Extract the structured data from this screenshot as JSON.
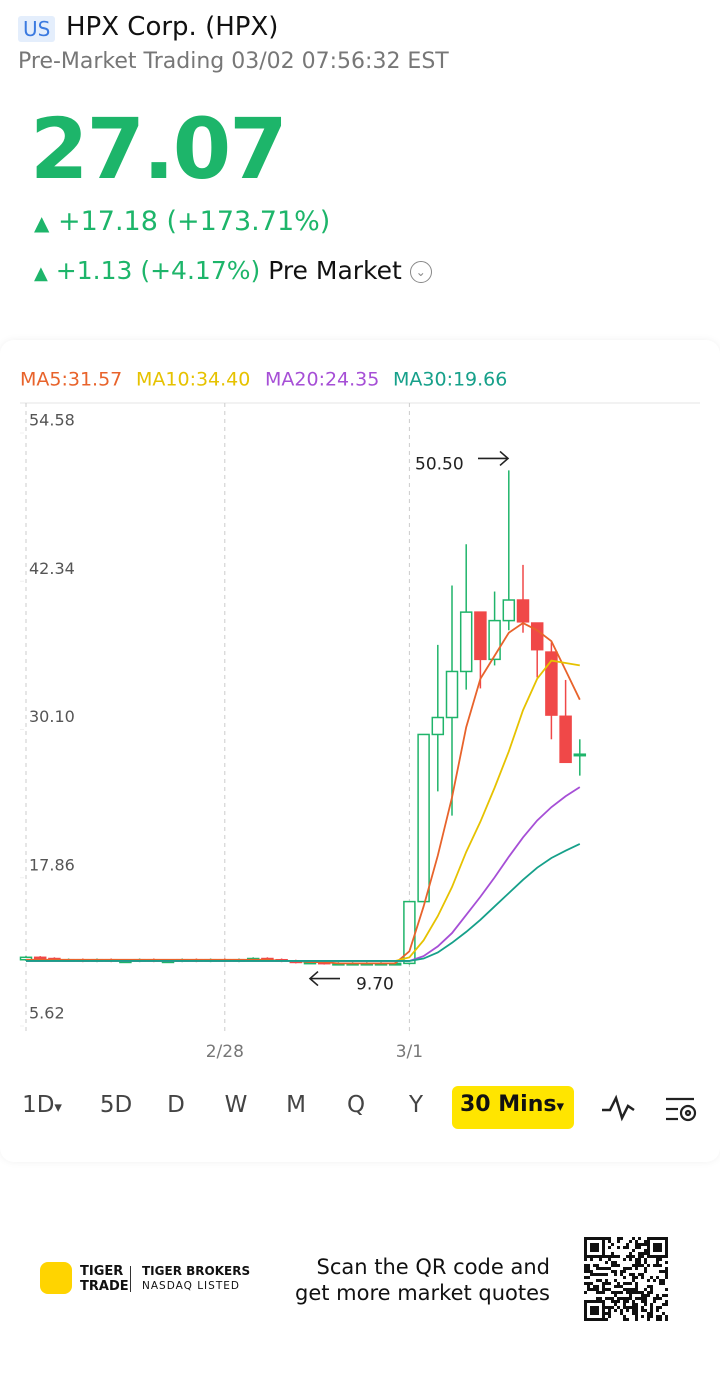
{
  "header": {
    "badge": "US",
    "title": "HPX Corp. (HPX)",
    "subtitle": "Pre-Market Trading 03/02 07:56:32 EST",
    "price": "27.07",
    "change": "+17.18 (+173.71%)",
    "pre_change": "+1.13 (+4.17%)",
    "pre_label": "Pre Market"
  },
  "chart_data": {
    "type": "candlestick",
    "categories": [
      null,
      null,
      null,
      null,
      null,
      null,
      null,
      null,
      null,
      null,
      null,
      null,
      null,
      null,
      "2/28",
      null,
      null,
      null,
      null,
      null,
      null,
      null,
      null,
      null,
      null,
      null,
      null,
      "3/1",
      null,
      null,
      null,
      null,
      null,
      null,
      null,
      null,
      null,
      null,
      null,
      null
    ],
    "open": [
      10.1,
      10.3,
      10.2,
      10.1,
      10.1,
      10.0,
      10.1,
      10.0,
      10.0,
      10.1,
      10.0,
      10.0,
      10.1,
      10.0,
      10.1,
      10.0,
      10.1,
      10.2,
      10.1,
      10.0,
      9.9,
      9.9,
      9.8,
      9.8,
      9.8,
      9.8,
      9.8,
      9.8,
      14.9,
      28.7,
      30.1,
      33.9,
      38.8,
      34.9,
      38.1,
      39.8,
      37.9,
      35.5,
      30.2,
      27.0
    ],
    "high": [
      10.4,
      10.4,
      10.3,
      10.2,
      10.2,
      10.2,
      10.2,
      10.1,
      10.2,
      10.2,
      10.1,
      10.2,
      10.2,
      10.2,
      10.2,
      10.2,
      10.3,
      10.3,
      10.2,
      10.1,
      10.0,
      10.0,
      9.9,
      9.9,
      9.9,
      9.9,
      9.9,
      14.9,
      28.7,
      36.1,
      41.0,
      44.4,
      38.8,
      40.5,
      50.5,
      42.7,
      37.9,
      36.3,
      33.2,
      28.3
    ],
    "low": [
      10.0,
      10.1,
      10.0,
      10.0,
      9.9,
      9.9,
      9.9,
      9.9,
      9.9,
      9.9,
      9.9,
      9.9,
      9.9,
      9.9,
      9.9,
      9.9,
      10.0,
      10.0,
      9.9,
      9.8,
      9.8,
      9.7,
      9.7,
      9.7,
      9.7,
      9.7,
      9.7,
      9.7,
      14.9,
      24.0,
      22.0,
      32.4,
      32.5,
      34.4,
      37.3,
      37.1,
      33.4,
      28.3,
      26.4,
      25.3
    ],
    "close": [
      10.3,
      10.2,
      10.1,
      10.1,
      10.0,
      10.1,
      10.0,
      10.0,
      10.1,
      10.0,
      10.0,
      10.1,
      10.0,
      10.1,
      10.0,
      10.1,
      10.2,
      10.1,
      10.0,
      9.9,
      9.9,
      9.8,
      9.8,
      9.8,
      9.8,
      9.8,
      9.8,
      14.9,
      28.7,
      30.1,
      33.9,
      38.8,
      34.9,
      38.1,
      39.8,
      38.0,
      35.7,
      30.3,
      26.4,
      27.07
    ],
    "up_color": "#1fb46a",
    "down_color": "#f04848",
    "series": [
      {
        "name": "MA5:31.57",
        "color": "#e8632b",
        "values": [
          10.1,
          10.1,
          10.1,
          10.1,
          10.1,
          10.1,
          10.1,
          10.1,
          10.1,
          10.1,
          10.1,
          10.1,
          10.1,
          10.1,
          10.1,
          10.1,
          10.1,
          10.1,
          10.0,
          10.0,
          9.9,
          9.9,
          9.8,
          9.8,
          9.8,
          9.8,
          9.8,
          10.8,
          14.5,
          18.7,
          23.5,
          29.3,
          33.3,
          35.2,
          37.1,
          37.9,
          37.3,
          36.4,
          34.0,
          31.57
        ]
      },
      {
        "name": "MA10:34.40",
        "color": "#e6c200",
        "values": [
          10.0,
          10.0,
          10.0,
          10.0,
          10.0,
          10.0,
          10.0,
          10.0,
          10.0,
          10.0,
          10.0,
          10.0,
          10.0,
          10.0,
          10.0,
          10.0,
          10.0,
          10.0,
          10.0,
          10.0,
          10.0,
          10.0,
          10.0,
          10.0,
          10.0,
          10.0,
          10.0,
          10.3,
          11.7,
          13.7,
          16.1,
          19.0,
          21.5,
          24.3,
          27.3,
          30.7,
          33.3,
          34.8,
          34.6,
          34.4
        ]
      },
      {
        "name": "MA20:24.35",
        "color": "#a64fd6",
        "values": [
          10.0,
          10.0,
          10.0,
          10.0,
          10.0,
          10.0,
          10.0,
          10.0,
          10.0,
          10.0,
          10.0,
          10.0,
          10.0,
          10.0,
          10.0,
          10.0,
          10.0,
          10.0,
          10.0,
          10.0,
          10.0,
          10.0,
          10.0,
          10.0,
          10.0,
          10.0,
          10.0,
          10.0,
          10.4,
          11.2,
          12.3,
          13.8,
          15.3,
          16.9,
          18.6,
          20.2,
          21.6,
          22.7,
          23.6,
          24.35
        ]
      },
      {
        "name": "MA30:19.66",
        "color": "#16a08a",
        "values": [
          10.0,
          10.0,
          10.0,
          10.0,
          10.0,
          10.0,
          10.0,
          10.0,
          10.0,
          10.0,
          10.0,
          10.0,
          10.0,
          10.0,
          10.0,
          10.0,
          10.0,
          10.0,
          10.0,
          10.0,
          10.0,
          10.0,
          10.0,
          10.0,
          10.0,
          10.0,
          10.0,
          10.0,
          10.2,
          10.7,
          11.5,
          12.4,
          13.4,
          14.5,
          15.6,
          16.7,
          17.7,
          18.5,
          19.1,
          19.66
        ]
      }
    ],
    "ylim": [
      5.62,
      54.58
    ],
    "yticks": [
      54.58,
      42.34,
      {
        "value": 30.1,
        "label": "30.10"
      },
      17.86,
      5.62
    ],
    "annotations": [
      {
        "label": "50.50",
        "value": 50.5
      },
      {
        "label": "9.70",
        "value": 9.7
      }
    ]
  },
  "tabs": [
    "1D",
    "5D",
    "D",
    "W",
    "M",
    "Q",
    "Y",
    "30 Mins"
  ],
  "footer": {
    "logo_top": "TIGER",
    "logo_bottom": "TRADE",
    "broker": "TIGER BROKERS",
    "listed": "NASDAQ LISTED",
    "scan_1": "Scan the QR code and",
    "scan_2": "get more market quotes"
  }
}
